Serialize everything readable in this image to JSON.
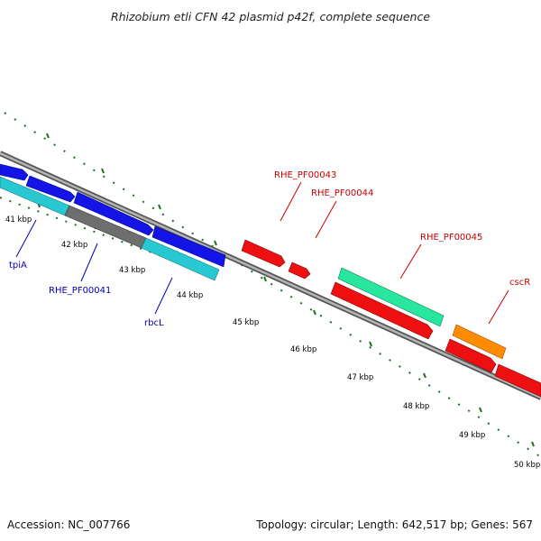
{
  "title": "Rhizobium etli CFN 42 plasmid p42f, complete sequence",
  "footer": {
    "accession": "Accession: NC_007766",
    "summary": "Topology: circular; Length: 642,517 bp; Genes: 567"
  },
  "kbp_labels": [
    "41 kbp",
    "42 kbp",
    "43 kbp",
    "44 kbp",
    "45 kbp",
    "46 kbp",
    "47 kbp",
    "48 kbp",
    "49 kbp",
    "50 kbp"
  ],
  "gene_labels": {
    "tpiA": "tpiA",
    "rhe_pf00041": "RHE_PF00041",
    "rbcL": "rbcL",
    "rhe_pf00043": "RHE_PF00043",
    "rhe_pf00044": "RHE_PF00044",
    "rhe_pf00045": "RHE_PF00045",
    "cscR": "cscR"
  },
  "colors": {
    "backbone": "#8c8c8c",
    "tick_dots": "#1e6e1e",
    "gene_blue": "#1414e6",
    "gene_cyan": "#28c8d2",
    "gene_gray": "#6e6e6e",
    "gene_red": "#ee1010",
    "gene_mint": "#28e6a0",
    "gene_orange": "#ff8c00",
    "label_blue": "#0000b4",
    "label_red": "#c80000"
  }
}
